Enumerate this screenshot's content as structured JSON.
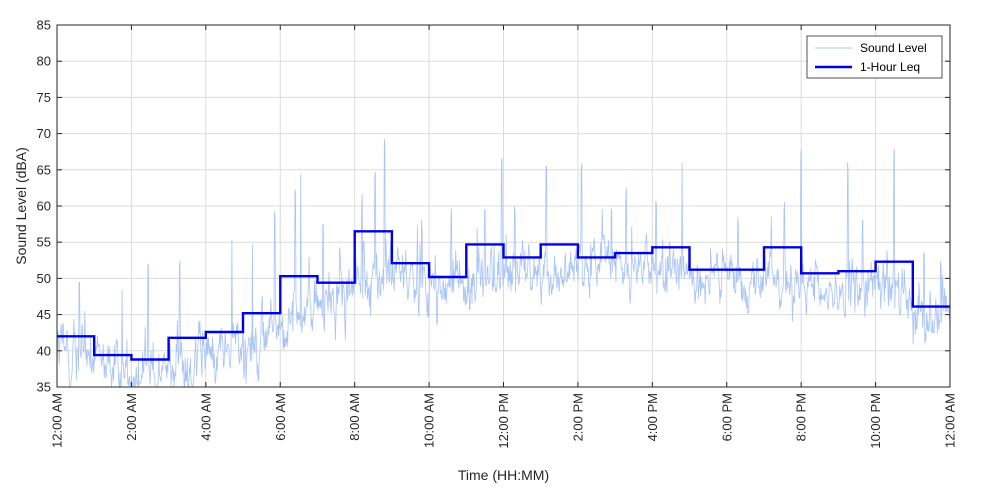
{
  "chart_data": {
    "type": "line",
    "xlabel": "Time (HH:MM)",
    "ylabel": "Sound Level (dBA)",
    "xlim_hours": [
      0,
      24
    ],
    "ylim": [
      35,
      85
    ],
    "yticks": [
      35,
      40,
      45,
      50,
      55,
      60,
      65,
      70,
      75,
      80,
      85
    ],
    "xticks": [
      {
        "hour": 0,
        "label": "12:00 AM"
      },
      {
        "hour": 2,
        "label": "2:00 AM"
      },
      {
        "hour": 4,
        "label": "4:00 AM"
      },
      {
        "hour": 6,
        "label": "6:00 AM"
      },
      {
        "hour": 8,
        "label": "8:00 AM"
      },
      {
        "hour": 10,
        "label": "10:00 AM"
      },
      {
        "hour": 12,
        "label": "12:00 PM"
      },
      {
        "hour": 14,
        "label": "2:00 PM"
      },
      {
        "hour": 16,
        "label": "4:00 PM"
      },
      {
        "hour": 18,
        "label": "6:00 PM"
      },
      {
        "hour": 20,
        "label": "8:00 PM"
      },
      {
        "hour": 22,
        "label": "10:00 PM"
      },
      {
        "hour": 24,
        "label": "12:00 AM"
      }
    ],
    "grid": true,
    "legend_position": "top-right",
    "series": [
      {
        "name": "Sound Level",
        "color": "#a9c4f5",
        "line_width": "thin",
        "hourly_mean": [
          40,
          37.5,
          37,
          38.5,
          40,
          42,
          45.5,
          47,
          50.5,
          50,
          48.5,
          50,
          51,
          51,
          52.5,
          51.5,
          51,
          50,
          49.5,
          50,
          47.5,
          48.5,
          48.5,
          45
        ],
        "hourly_spread": [
          4,
          3,
          3,
          4,
          3.5,
          4,
          4,
          4,
          4,
          4,
          3.5,
          3.5,
          3,
          3,
          3,
          3,
          3,
          3,
          3,
          3.5,
          3.5,
          3.5,
          4,
          3.5
        ],
        "peaks": [
          {
            "hour": 0.6,
            "value": 50.5
          },
          {
            "hour": 1.75,
            "value": 48.5
          },
          {
            "hour": 2.45,
            "value": 53
          },
          {
            "hour": 3.3,
            "value": 53
          },
          {
            "hour": 4.7,
            "value": 55.5
          },
          {
            "hour": 5.25,
            "value": 55
          },
          {
            "hour": 5.85,
            "value": 60
          },
          {
            "hour": 6.4,
            "value": 63
          },
          {
            "hour": 6.55,
            "value": 64.5
          },
          {
            "hour": 7.15,
            "value": 58.5
          },
          {
            "hour": 7.6,
            "value": 55
          },
          {
            "hour": 8.2,
            "value": 62
          },
          {
            "hour": 8.55,
            "value": 65.5
          },
          {
            "hour": 8.8,
            "value": 70
          },
          {
            "hour": 9.8,
            "value": 58.5
          },
          {
            "hour": 10.6,
            "value": 60
          },
          {
            "hour": 11.5,
            "value": 60.5
          },
          {
            "hour": 11.95,
            "value": 67.5
          },
          {
            "hour": 12.3,
            "value": 60.5
          },
          {
            "hour": 13.15,
            "value": 66.5
          },
          {
            "hour": 14.1,
            "value": 66.5
          },
          {
            "hour": 14.9,
            "value": 60.5
          },
          {
            "hour": 15.3,
            "value": 63
          },
          {
            "hour": 16.1,
            "value": 61.5
          },
          {
            "hour": 16.8,
            "value": 66
          },
          {
            "hour": 18.3,
            "value": 59
          },
          {
            "hour": 19.55,
            "value": 61
          },
          {
            "hour": 20.0,
            "value": 68.5
          },
          {
            "hour": 21.25,
            "value": 66.5
          },
          {
            "hour": 21.65,
            "value": 59
          },
          {
            "hour": 22.5,
            "value": 68.5
          },
          {
            "hour": 23.3,
            "value": 54.5
          },
          {
            "hour": 23.75,
            "value": 53
          }
        ]
      },
      {
        "name": "1-Hour Leq",
        "color": "#0000e6",
        "line_width": "thick",
        "step_values": [
          42,
          39.4,
          38.8,
          41.8,
          42.6,
          45.2,
          50.3,
          49.4,
          56.5,
          52.1,
          50.2,
          54.7,
          52.9,
          54.7,
          52.9,
          53.5,
          54.3,
          51.2,
          51.2,
          54.3,
          50.7,
          51,
          52.3,
          46.1
        ]
      }
    ]
  }
}
